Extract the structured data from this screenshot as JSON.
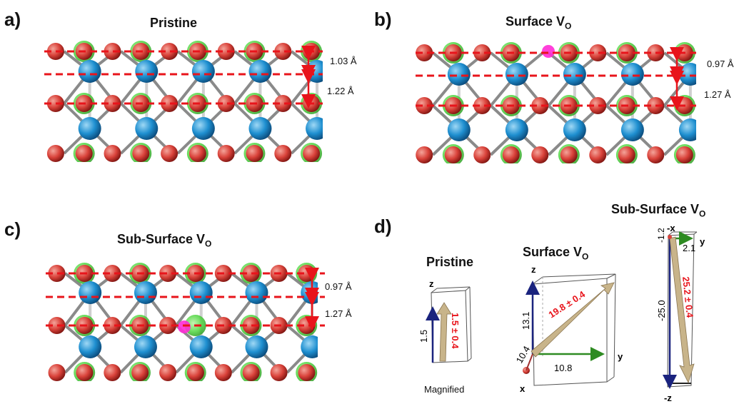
{
  "panels": {
    "a": {
      "letter": "a)",
      "title": "Pristine",
      "dist_top": "1.03 Å",
      "dist_bottom": "1.22 Å"
    },
    "b": {
      "letter": "b)",
      "title": "Surface V",
      "title_sub": "O",
      "dist_top": "0.97 Å",
      "dist_bottom": "1.27 Å"
    },
    "c": {
      "letter": "c)",
      "title": "Sub-Surface V",
      "title_sub": "O",
      "dist_top": "0.97 Å",
      "dist_bottom": "1.27 Å"
    },
    "d": {
      "letter": "d)",
      "pristine": {
        "title": "Pristine",
        "axis_z": "z",
        "z_value": "1.5",
        "vector": "1.5 ± 0.4",
        "note": "Magnified"
      },
      "surface": {
        "title": "Surface V",
        "title_sub": "O",
        "axis_z": "z",
        "axis_y": "y",
        "axis_x": "x",
        "z_value": "13.1",
        "y_value": "10.8",
        "x_value": "10.4",
        "vector": "19.8 ± 0.4"
      },
      "subsurface": {
        "title": "Sub-Surface V",
        "title_sub": "O",
        "axis_negx": "-x",
        "axis_y": "y",
        "axis_negz": "-z",
        "x_value": "-1.2",
        "y_value": "2.1",
        "z_value": "-25.0",
        "vector": "25.2 ± 0.4"
      }
    }
  },
  "colors": {
    "oxygen": "#d9423a",
    "ti": "#1e8fd0",
    "green": "#4fd640",
    "dash": "#e8141b",
    "bond": "#8a8a8a",
    "vector": "#c8b48a",
    "magenta": "#ff2bd6"
  }
}
